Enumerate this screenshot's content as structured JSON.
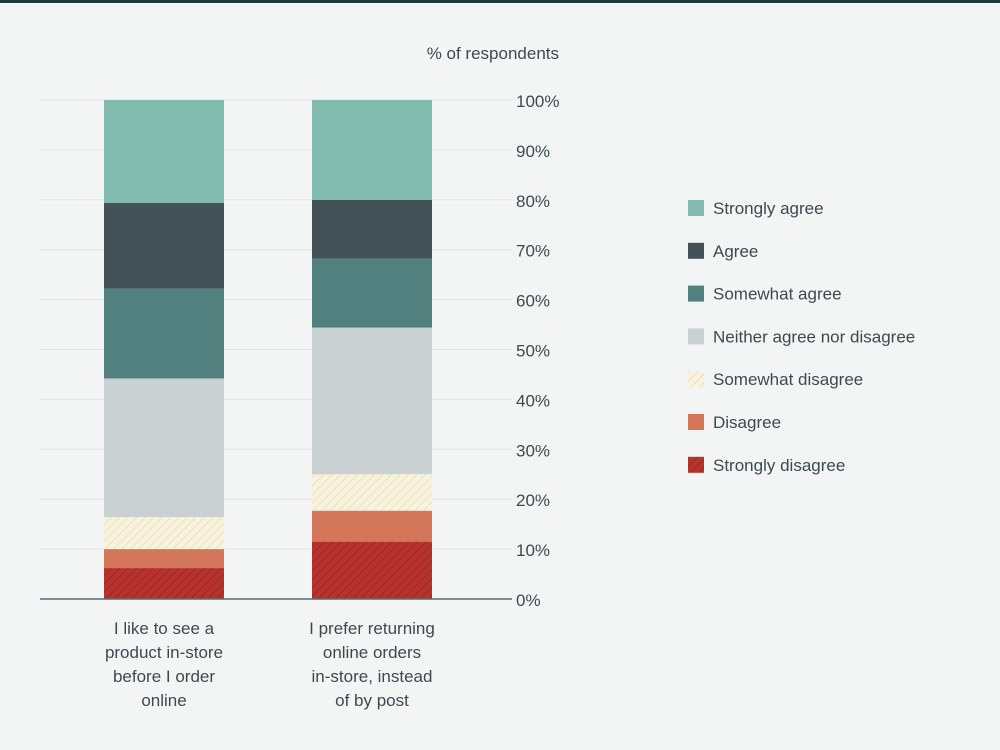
{
  "chart_data": {
    "type": "bar",
    "stacked": true,
    "ylabel": "% of respondents",
    "ylim": [
      0,
      100
    ],
    "yticks": [
      "0%",
      "10%",
      "20%",
      "30%",
      "40%",
      "50%",
      "60%",
      "70%",
      "80%",
      "90%",
      "100%"
    ],
    "grid": true,
    "legend_position": "right",
    "categories": [
      [
        "I like to see a",
        "product in-store",
        "before I order",
        "online"
      ],
      [
        "I prefer returning",
        "online orders",
        "in-store, instead",
        "of by post"
      ]
    ],
    "series": [
      {
        "name": "Strongly disagree",
        "values": [
          6.2,
          11.5
        ],
        "color": "#b8332e",
        "pattern": "hatch-dark"
      },
      {
        "name": "Disagree",
        "values": [
          3.8,
          6.2
        ],
        "color": "#d4765a",
        "pattern": "none"
      },
      {
        "name": "Somewhat disagree",
        "values": [
          6.4,
          7.3
        ],
        "color": "#f5f0d8",
        "pattern": "hatch-light"
      },
      {
        "name": "Neither agree nor disagree",
        "values": [
          27.8,
          29.4
        ],
        "color": "#c9d1d3",
        "pattern": "none"
      },
      {
        "name": "Somewhat agree",
        "values": [
          18.0,
          13.8
        ],
        "color": "#52807f",
        "pattern": "none"
      },
      {
        "name": "Agree",
        "values": [
          17.2,
          11.8
        ],
        "color": "#435257",
        "pattern": "none"
      },
      {
        "name": "Strongly agree",
        "values": [
          20.6,
          20.0
        ],
        "color": "#82bcae",
        "pattern": "none"
      }
    ]
  }
}
